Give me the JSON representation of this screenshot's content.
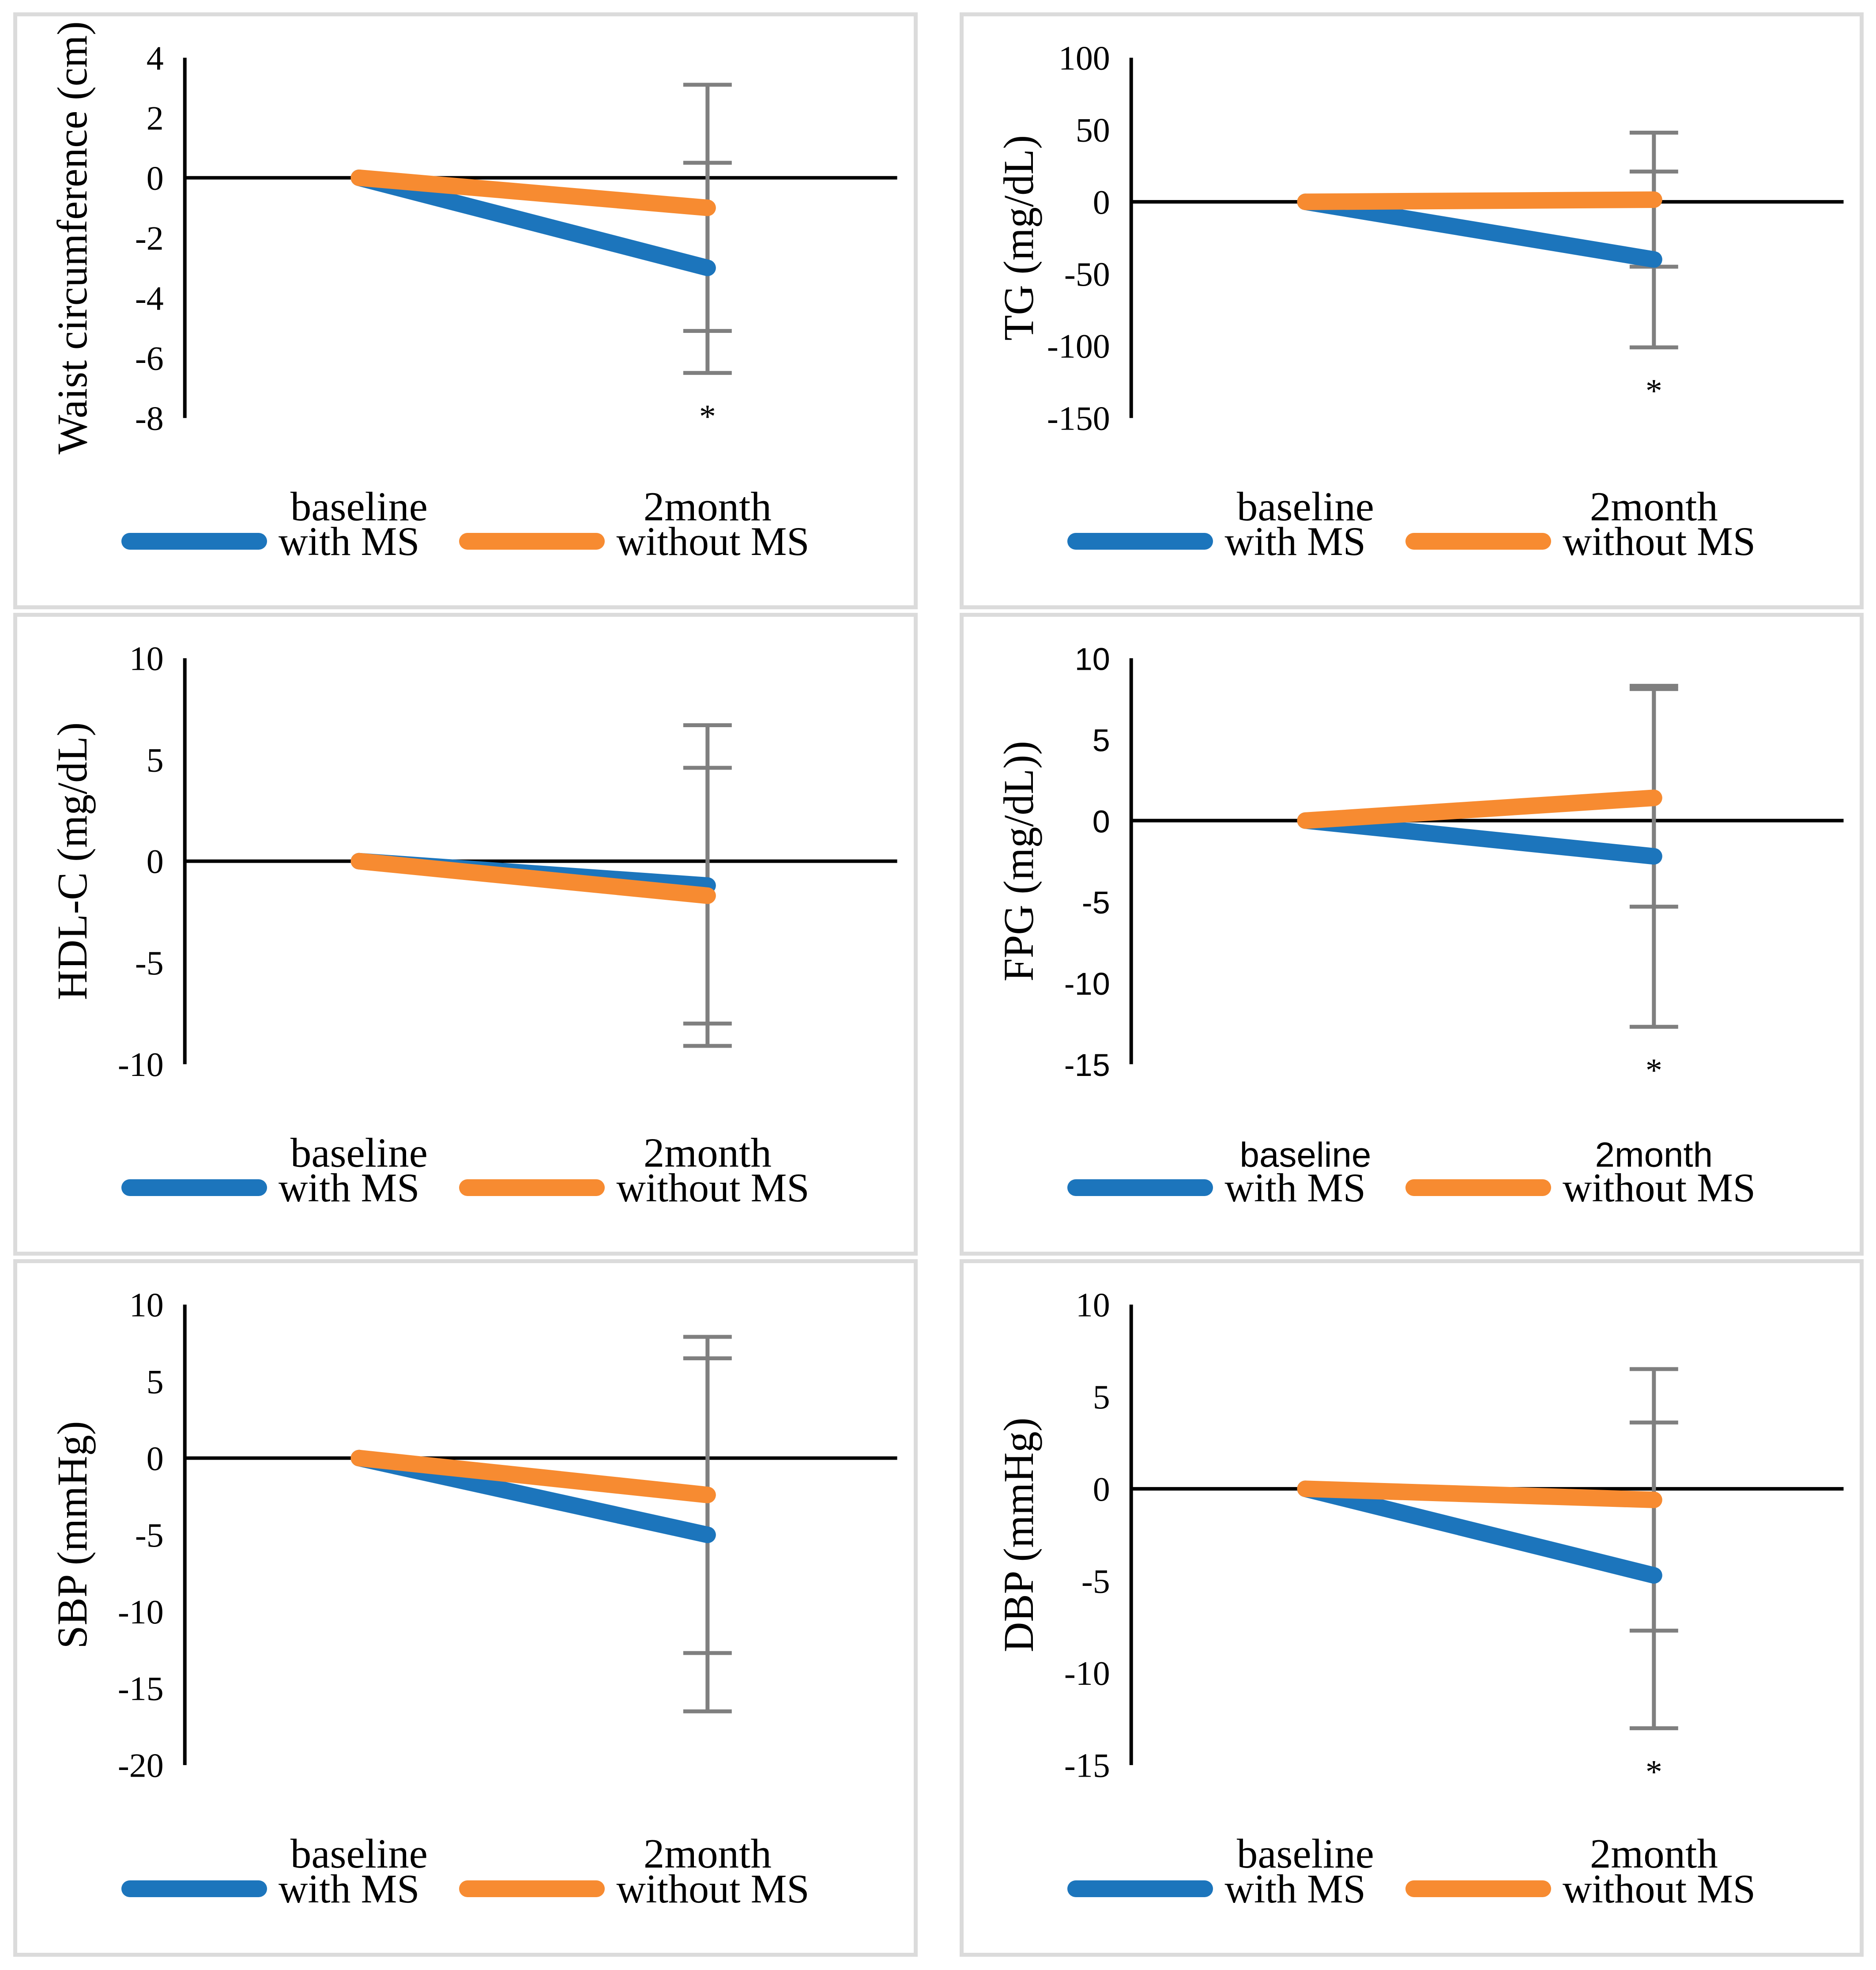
{
  "legend": {
    "with_ms_label": "with MS",
    "without_ms_label": "without MS"
  },
  "colors": {
    "with_ms": "#1c75bc",
    "without_ms": "#f78b31",
    "error_bar": "#7f7f7f",
    "axis": "#000000",
    "panel_border": "#dbdbdb"
  },
  "chart_data": [
    {
      "type": "line",
      "id": "waist",
      "ylabel": "Waist circumference (cm)",
      "ylim": [
        -8,
        4
      ],
      "yticks": [
        4,
        2,
        0,
        -2,
        -4,
        -6,
        -8
      ],
      "categories": [
        "baseline",
        "2month"
      ],
      "series": [
        {
          "name": "with MS",
          "values": [
            0,
            -3
          ],
          "error": 3.5
        },
        {
          "name": "without MS",
          "values": [
            0,
            -1
          ],
          "error": 4.1
        }
      ],
      "significance": "*",
      "legend_position": "bottom",
      "grid": false
    },
    {
      "type": "line",
      "id": "tg",
      "ylabel": "TG (mg/dL)",
      "ylim": [
        -150,
        100
      ],
      "yticks": [
        100,
        50,
        0,
        -50,
        -100,
        -150
      ],
      "categories": [
        "baseline",
        "2month"
      ],
      "series": [
        {
          "name": "with MS",
          "values": [
            0,
            -40
          ],
          "error": 61
        },
        {
          "name": "without MS",
          "values": [
            0,
            1.5
          ],
          "error": 46.5
        }
      ],
      "significance": "*",
      "legend_position": "bottom",
      "grid": false
    },
    {
      "type": "line",
      "id": "hdlc",
      "ylabel": "HDL-C (mg/dL)",
      "ylim": [
        -10,
        10
      ],
      "yticks": [
        10,
        5,
        0,
        -5,
        -10
      ],
      "categories": [
        "baseline",
        "2month"
      ],
      "series": [
        {
          "name": "with MS",
          "values": [
            0,
            -1.2
          ],
          "error": 7.9
        },
        {
          "name": "without MS",
          "values": [
            0,
            -1.7
          ],
          "error": 6.3
        }
      ],
      "significance": null,
      "legend_position": "bottom",
      "grid": false
    },
    {
      "type": "line",
      "id": "fpg",
      "ylabel": "FPG (mg/dL))",
      "ylim": [
        -15,
        10
      ],
      "yticks": [
        10,
        5,
        0,
        -5,
        -10,
        -15
      ],
      "categories": [
        "baseline",
        "2month"
      ],
      "series": [
        {
          "name": "with MS",
          "values": [
            0,
            -2.2
          ],
          "error": 10.5
        },
        {
          "name": "without MS",
          "values": [
            0,
            1.4
          ],
          "error": 6.7
        }
      ],
      "significance": "*",
      "legend_position": "bottom",
      "grid": false
    },
    {
      "type": "line",
      "id": "sbp",
      "ylabel": "SBP (mmHg)",
      "ylim": [
        -20,
        10
      ],
      "yticks": [
        10,
        5,
        0,
        -5,
        -10,
        -15,
        -20
      ],
      "categories": [
        "baseline",
        "2month"
      ],
      "series": [
        {
          "name": "with MS",
          "values": [
            0,
            -5
          ],
          "error": 11.5
        },
        {
          "name": "without MS",
          "values": [
            0,
            -2.4
          ],
          "error": 10.3
        }
      ],
      "significance": null,
      "legend_position": "bottom",
      "grid": false
    },
    {
      "type": "line",
      "id": "dbp",
      "ylabel": "DBP (mmHg)",
      "ylim": [
        -15,
        10
      ],
      "yticks": [
        10,
        5,
        0,
        -5,
        -10,
        -15
      ],
      "categories": [
        "baseline",
        "2month"
      ],
      "series": [
        {
          "name": "with MS",
          "values": [
            0,
            -4.7
          ],
          "error": 8.3
        },
        {
          "name": "without MS",
          "values": [
            0,
            -0.6
          ],
          "error": 7.1
        }
      ],
      "significance": "*",
      "legend_position": "bottom",
      "grid": false
    }
  ]
}
